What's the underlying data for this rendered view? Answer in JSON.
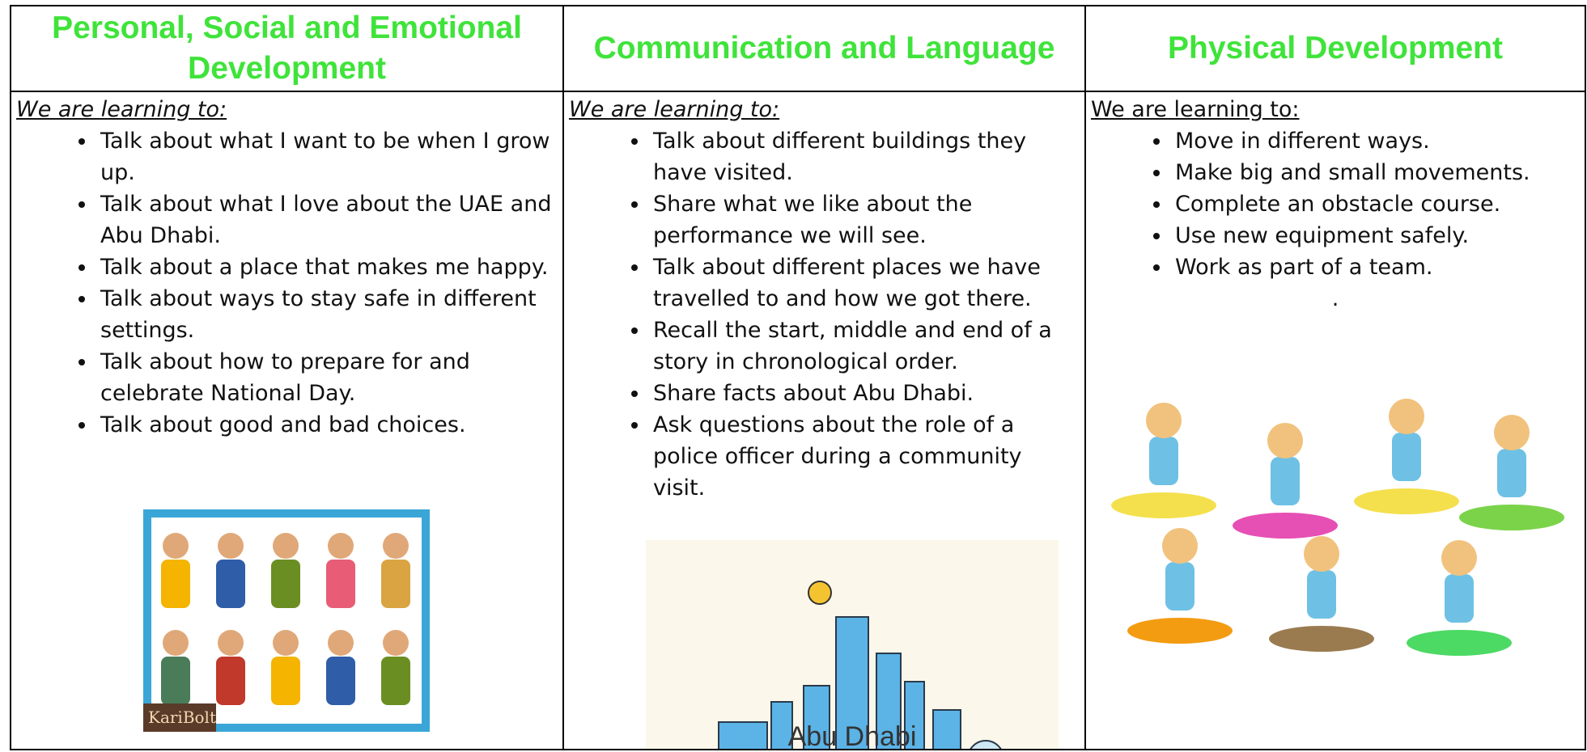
{
  "columns": [
    {
      "heading": "Personal, Social and Emotional Development",
      "intro": "We are learning to:",
      "items": [
        "Talk about what I want to be when I grow up.",
        "Talk about what I love about the UAE and Abu Dhabi.",
        "Talk about a place that makes me happy.",
        "Talk about ways to stay safe in different settings.",
        "Talk about how to prepare for and celebrate National Day.",
        "Talk about good and bad choices."
      ],
      "image_text": "KariBolt"
    },
    {
      "heading": "Communication and Language",
      "intro": "We are learning to:",
      "items": [
        "Talk about different buildings they have visited.",
        "Share what we like about the performance we will see.",
        "Talk about different places we have travelled to and how we got there.",
        "Recall the start, middle and end of a story in chronological order.",
        "Share facts about Abu Dhabi.",
        "Ask questions about the role of a police officer during a community visit."
      ],
      "image_text": "Abu Dhabi"
    },
    {
      "heading": "Physical Development",
      "intro": "We are learning to:",
      "items": [
        "Move in different ways.",
        "Make big and small movements.",
        "Complete an obstacle course.",
        "Use new equipment safely.",
        "Work as part of a team."
      ],
      "note": "."
    }
  ]
}
